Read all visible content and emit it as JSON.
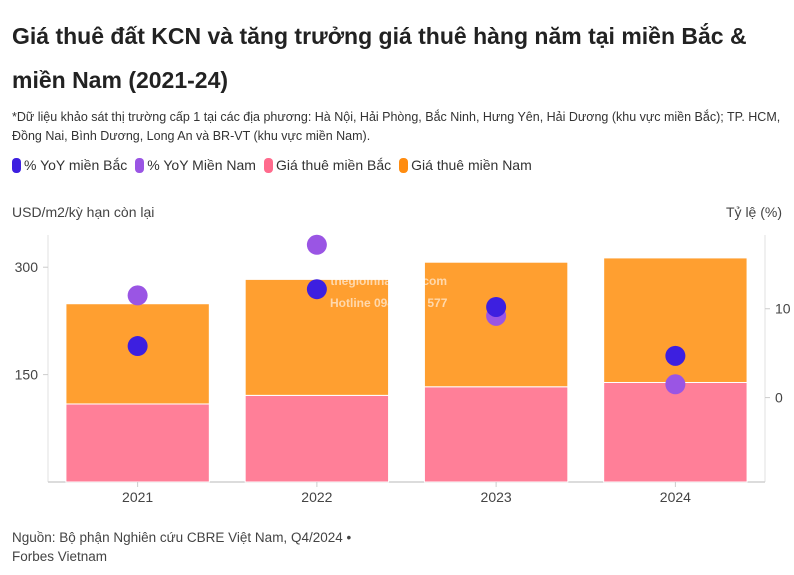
{
  "title": "Giá thuê đất KCN và tăng trưởng giá thuê hàng năm tại miền Bắc & miền Nam (2021-24)",
  "note": "*Dữ liệu khảo sát thị trường cấp 1 tại các địa phương: Hà Nội, Hải Phòng, Bắc Ninh, Hưng Yên, Hải Dương (khu vực miền Bắc); TP. HCM, Đồng Nai, Bình Dương, Long An và BR-VT (khu vực miền Nam).",
  "source": "Nguồn: Bộ phận Nghiên cứu CBRE Việt Nam, Q4/2024 • Forbes Vietnam",
  "watermark": {
    "line1": "thegioinhasang.com",
    "line2": "Hotline 0942 033 577"
  },
  "chart_data": {
    "type": "bar",
    "stacked": true,
    "categories": [
      "2021",
      "2022",
      "2023",
      "2024"
    ],
    "ylabel": "USD/m2/kỳ hạn còn lại",
    "ylabel_right": "Tỷ lệ (%)",
    "ylim": [
      0,
      345
    ],
    "ylim_right": [
      -9.5,
      18.3
    ],
    "yticks": [
      150,
      300
    ],
    "yticks_right": [
      0,
      10
    ],
    "legend_position": "top-left",
    "series": [
      {
        "name": "% YoY miền Bắc",
        "type": "scatter",
        "axis": "right",
        "color": "#3d1fe0",
        "values": [
          5.8,
          12.2,
          10.2,
          4.7
        ]
      },
      {
        "name": "% YoY Miền Nam",
        "type": "scatter",
        "axis": "right",
        "color": "#9a55e4",
        "values": [
          11.5,
          17.2,
          9.2,
          1.5
        ]
      },
      {
        "name": "Giá thuê miền Bắc",
        "type": "bar",
        "axis": "left",
        "color": "#ff7f98",
        "values": [
          109,
          121,
          133,
          139
        ]
      },
      {
        "name": "Giá thuê miền Nam",
        "type": "bar",
        "axis": "left",
        "color": "#ff9f30",
        "values": [
          140,
          162,
          174,
          174
        ]
      }
    ]
  }
}
